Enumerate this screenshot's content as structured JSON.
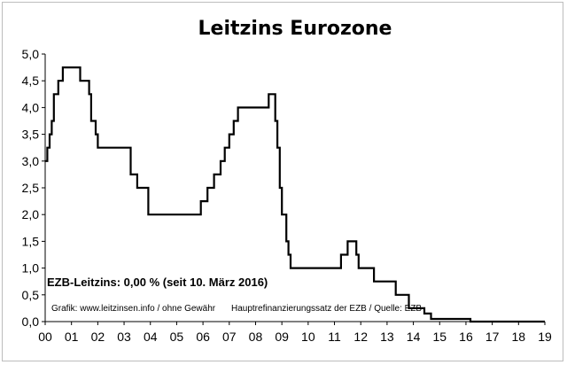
{
  "chart_data": {
    "type": "line",
    "title": "Leitzins Eurozone",
    "xlabel": "",
    "ylabel": "",
    "x_ticks": [
      "00",
      "01",
      "02",
      "03",
      "04",
      "05",
      "06",
      "07",
      "08",
      "09",
      "10",
      "11",
      "12",
      "13",
      "14",
      "15",
      "16",
      "17",
      "18",
      "19"
    ],
    "y_ticks": [
      "0,0",
      "0,5",
      "1,0",
      "1,5",
      "2,0",
      "2,5",
      "3,0",
      "3,5",
      "4,0",
      "4,5",
      "5,0"
    ],
    "xlim": [
      2000,
      2019
    ],
    "ylim": [
      0,
      5
    ],
    "grid": false,
    "line_color": "#000000",
    "series": [
      {
        "name": "",
        "step": true,
        "x": [
          2000.0,
          2000.08,
          2000.17,
          2000.25,
          2000.33,
          2000.5,
          2000.67,
          2000.83,
          2001.33,
          2001.67,
          2001.75,
          2001.92,
          2002.0,
          2003.25,
          2003.5,
          2003.92,
          2005.92,
          2006.17,
          2006.42,
          2006.67,
          2006.83,
          2007.0,
          2007.17,
          2007.33,
          2007.5,
          2008.5,
          2008.75,
          2008.83,
          2008.92,
          2009.0,
          2009.17,
          2009.25,
          2009.33,
          2009.42,
          2011.25,
          2011.5,
          2011.83,
          2011.92,
          2012.5,
          2013.33,
          2013.83,
          2014.42,
          2014.67,
          2016.17,
          2019.0
        ],
        "y": [
          3.0,
          3.25,
          3.5,
          3.75,
          4.25,
          4.5,
          4.75,
          4.75,
          4.5,
          4.25,
          3.75,
          3.5,
          3.25,
          2.75,
          2.5,
          2.0,
          2.25,
          2.5,
          2.75,
          3.0,
          3.25,
          3.5,
          3.75,
          4.0,
          4.0,
          4.25,
          3.75,
          3.25,
          2.5,
          2.0,
          1.5,
          1.25,
          1.0,
          1.0,
          1.25,
          1.5,
          1.25,
          1.0,
          0.75,
          0.5,
          0.25,
          0.15,
          0.05,
          0.0,
          0.0
        ]
      }
    ],
    "annotations": {
      "info": "EZB-Leitzins: 0,00 % (seit 10. März 2016)",
      "credit": "Grafik: www.leitzinsen.info / ohne Gewähr",
      "source": "Hauptrefinanzierungssatz der EZB / Quelle: EZB"
    }
  }
}
